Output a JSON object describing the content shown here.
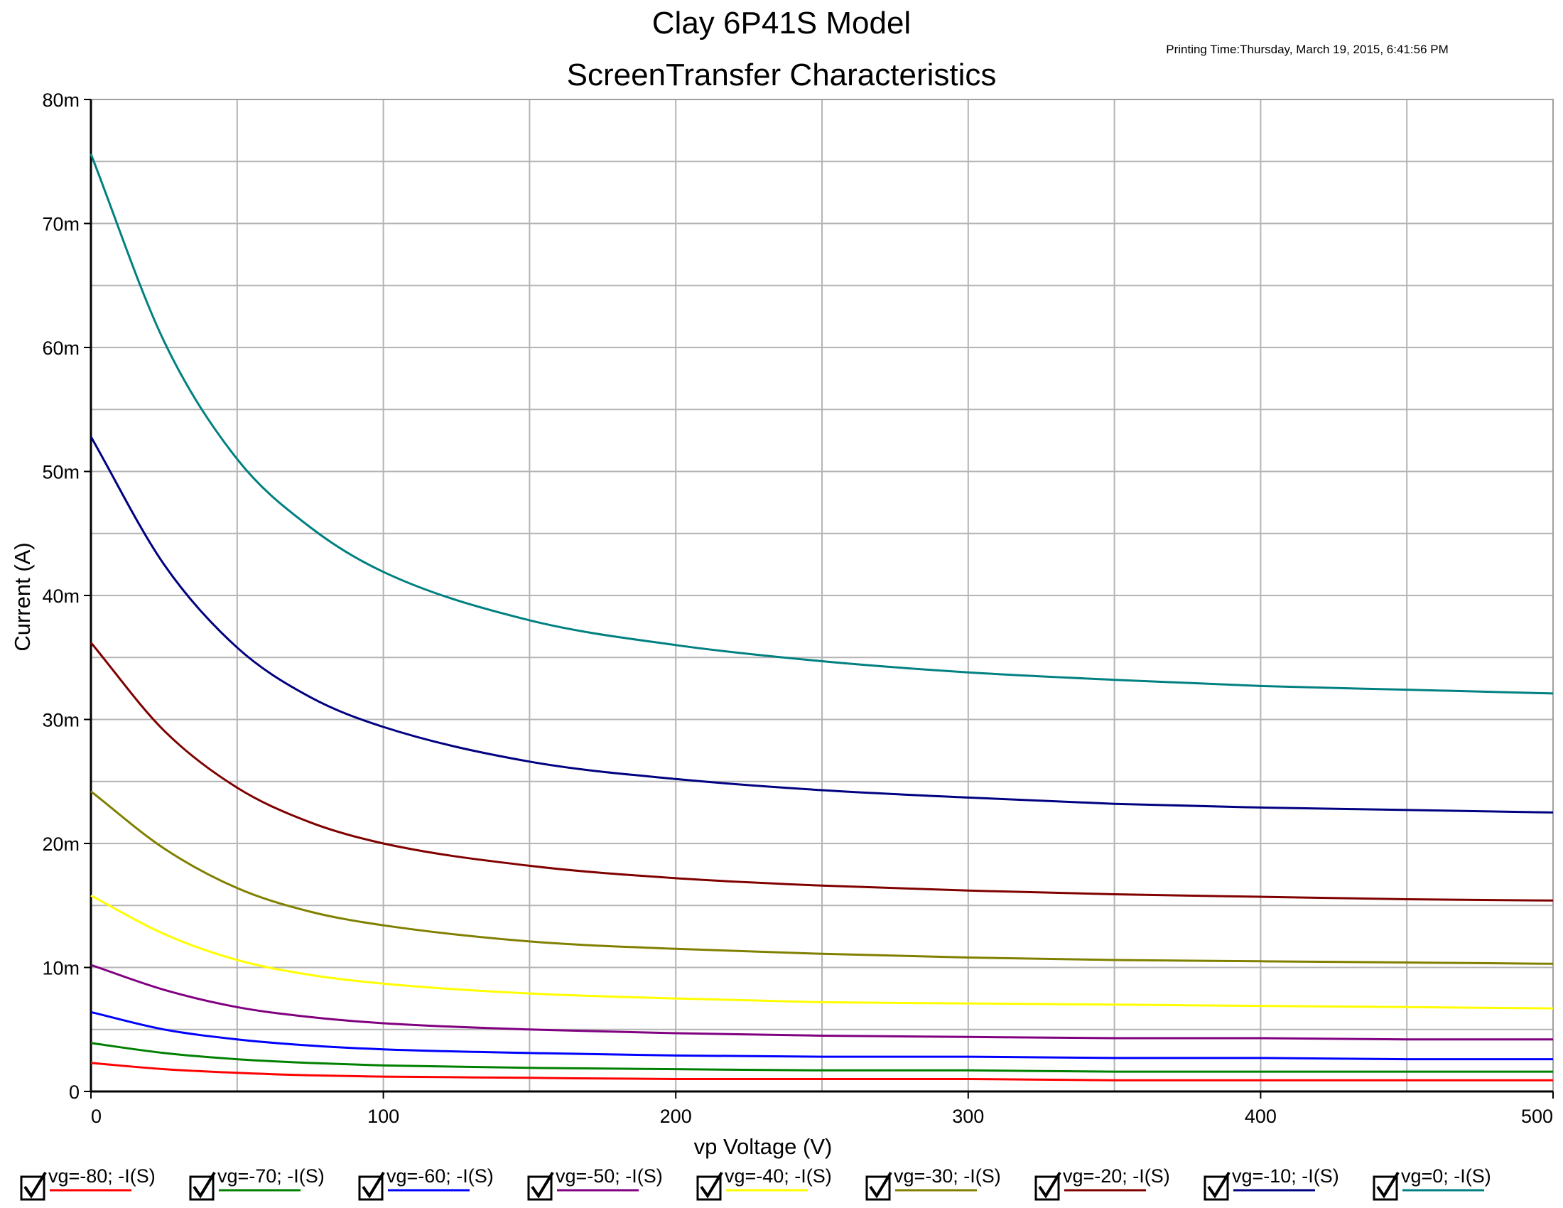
{
  "printing_time": "Printing Time:Thursday, March 19, 2015, 6:41:56 PM",
  "chart_data": {
    "type": "line",
    "title": "Clay 6P41S Model",
    "subtitle": "ScreenTransfer Characteristics",
    "xlabel": "vp Voltage (V)",
    "ylabel": "Current (A)",
    "xlim": [
      0,
      500
    ],
    "ylim": [
      0,
      0.08
    ],
    "grid": true,
    "legend_position": "bottom",
    "x_ticks": [
      {
        "value": 0,
        "label": "0"
      },
      {
        "value": 100,
        "label": "100"
      },
      {
        "value": 200,
        "label": "200"
      },
      {
        "value": 300,
        "label": "300"
      },
      {
        "value": 400,
        "label": "400"
      },
      {
        "value": 500,
        "label": "500"
      }
    ],
    "y_ticks": [
      {
        "value": 0,
        "label": "0"
      },
      {
        "value": 0.01,
        "label": "10m"
      },
      {
        "value": 0.02,
        "label": "20m"
      },
      {
        "value": 0.03,
        "label": "30m"
      },
      {
        "value": 0.04,
        "label": "40m"
      },
      {
        "value": 0.05,
        "label": "50m"
      },
      {
        "value": 0.06,
        "label": "60m"
      },
      {
        "value": 0.07,
        "label": "70m"
      },
      {
        "value": 0.08,
        "label": "80m"
      }
    ],
    "x": [
      0,
      25,
      50,
      75,
      100,
      150,
      200,
      250,
      300,
      350,
      400,
      450,
      500
    ],
    "series": [
      {
        "name": "vg=-80; -I(S)",
        "color": "#ff0000",
        "checked": true,
        "values": [
          0.0023,
          0.0018,
          0.0015,
          0.0013,
          0.0012,
          0.0011,
          0.001,
          0.001,
          0.001,
          0.0009,
          0.0009,
          0.0009,
          0.0009
        ]
      },
      {
        "name": "vg=-70; -I(S)",
        "color": "#008000",
        "checked": true,
        "values": [
          0.0039,
          0.0031,
          0.0026,
          0.0023,
          0.0021,
          0.0019,
          0.0018,
          0.0017,
          0.0017,
          0.0016,
          0.0016,
          0.0016,
          0.0016
        ]
      },
      {
        "name": "vg=-60; -I(S)",
        "color": "#0000ff",
        "checked": true,
        "values": [
          0.0064,
          0.005,
          0.0042,
          0.0037,
          0.0034,
          0.0031,
          0.0029,
          0.0028,
          0.0028,
          0.0027,
          0.0027,
          0.0026,
          0.0026
        ]
      },
      {
        "name": "vg=-50; -I(S)",
        "color": "#800080",
        "checked": true,
        "values": [
          0.0102,
          0.0082,
          0.0068,
          0.006,
          0.0055,
          0.005,
          0.0047,
          0.0045,
          0.0044,
          0.0043,
          0.0043,
          0.0042,
          0.0042
        ]
      },
      {
        "name": "vg=-40; -I(S)",
        "color": "#ffff00",
        "checked": true,
        "values": [
          0.0158,
          0.0127,
          0.0106,
          0.0094,
          0.0087,
          0.0079,
          0.0075,
          0.0072,
          0.0071,
          0.007,
          0.0069,
          0.0068,
          0.0067
        ]
      },
      {
        "name": "vg=-30; -I(S)",
        "color": "#808000",
        "checked": true,
        "values": [
          0.0242,
          0.0196,
          0.0164,
          0.0145,
          0.0134,
          0.0121,
          0.0115,
          0.0111,
          0.0108,
          0.0106,
          0.0105,
          0.0104,
          0.0103
        ]
      },
      {
        "name": "vg=-20; -I(S)",
        "color": "#800000",
        "checked": true,
        "values": [
          0.0362,
          0.0291,
          0.0245,
          0.0217,
          0.02,
          0.0182,
          0.0172,
          0.0166,
          0.0162,
          0.0159,
          0.0157,
          0.0155,
          0.0154
        ]
      },
      {
        "name": "vg=-10; -I(S)",
        "color": "#000080",
        "checked": true,
        "values": [
          0.0528,
          0.0425,
          0.0358,
          0.0318,
          0.0294,
          0.0266,
          0.0252,
          0.0243,
          0.0237,
          0.0232,
          0.0229,
          0.0227,
          0.0225
        ]
      },
      {
        "name": "vg=0; -I(S)",
        "color": "#008080",
        "checked": true,
        "values": [
          0.0756,
          0.0605,
          0.051,
          0.0455,
          0.0419,
          0.038,
          0.036,
          0.0347,
          0.0338,
          0.0332,
          0.0327,
          0.0324,
          0.0321
        ]
      }
    ]
  }
}
